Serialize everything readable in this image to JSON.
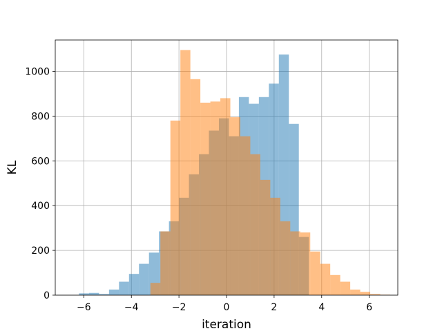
{
  "chart_data": {
    "type": "bar",
    "subtype": "overlapping-histogram",
    "title": "",
    "xlabel": "iteration",
    "ylabel": "KL",
    "xlim": [
      -7.2,
      7.2
    ],
    "ylim": [
      0,
      1140
    ],
    "grid": true,
    "legend": "none",
    "x_ticks": [
      -6,
      -4,
      -2,
      0,
      2,
      4,
      6
    ],
    "x_tick_labels": [
      "−6",
      "−4",
      "−2",
      "0",
      "2",
      "4",
      "6"
    ],
    "y_ticks": [
      0,
      200,
      400,
      600,
      800,
      1000
    ],
    "y_tick_labels": [
      "0",
      "200",
      "400",
      "600",
      "800",
      "1000"
    ],
    "series": [
      {
        "color": "#1f77b4",
        "alpha": 0.5,
        "bin_start": -6.2,
        "bin_width": 0.42,
        "values": [
          8,
          10,
          5,
          25,
          60,
          95,
          140,
          190,
          285,
          330,
          435,
          540,
          630,
          735,
          790,
          710,
          885,
          855,
          885,
          945,
          1075,
          765,
          260,
          0,
          0,
          0
        ]
      },
      {
        "color": "#ff7f0e",
        "alpha": 0.5,
        "bin_start": -3.2,
        "bin_width": 0.42,
        "values": [
          55,
          285,
          780,
          1095,
          965,
          860,
          865,
          880,
          795,
          710,
          630,
          515,
          435,
          330,
          285,
          280,
          195,
          140,
          90,
          60,
          25,
          15,
          5,
          2
        ]
      }
    ]
  }
}
